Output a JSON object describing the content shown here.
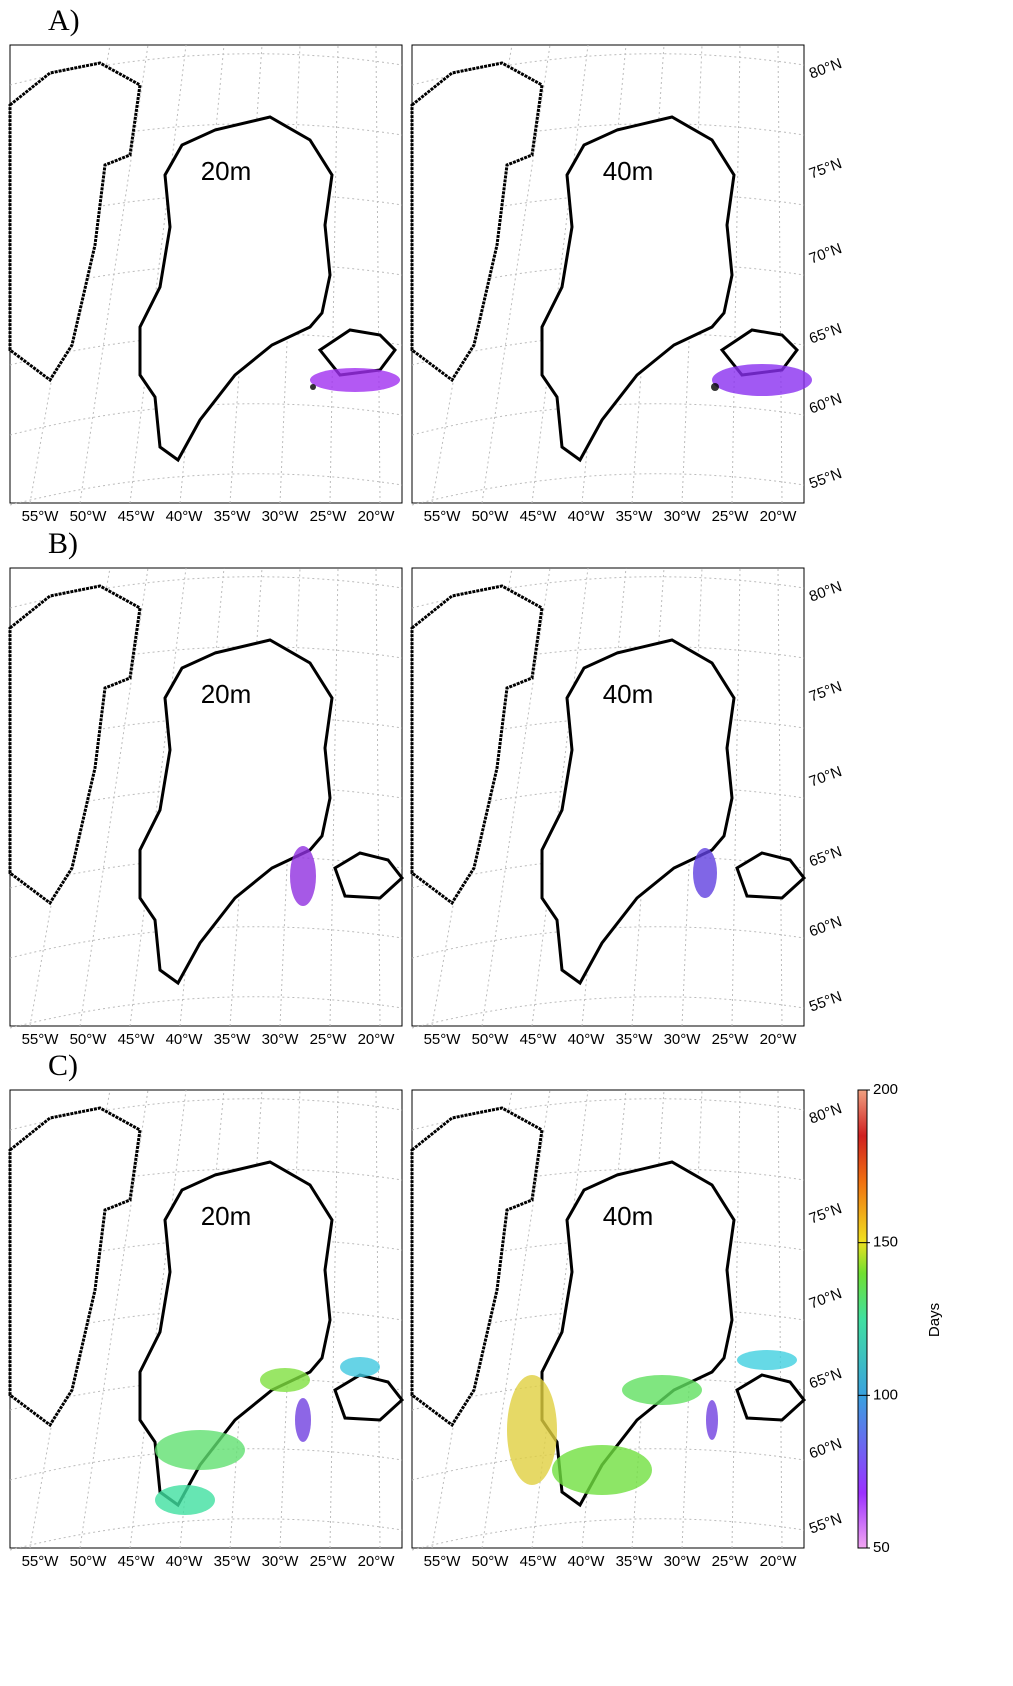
{
  "panels": [
    {
      "label": "A)",
      "maps": [
        {
          "depth": "20m"
        },
        {
          "depth": "40m"
        }
      ]
    },
    {
      "label": "B)",
      "maps": [
        {
          "depth": "20m"
        },
        {
          "depth": "40m"
        }
      ]
    },
    {
      "label": "C)",
      "maps": [
        {
          "depth": "20m"
        },
        {
          "depth": "40m"
        }
      ]
    }
  ],
  "lon_labels": [
    "55°W",
    "50°W",
    "45°W",
    "40°W",
    "35°W",
    "30°W",
    "25°W",
    "20°W"
  ],
  "lat_labels": [
    "80°N",
    "75°N",
    "70°N",
    "65°N",
    "60°N",
    "55°N"
  ],
  "colorbar": {
    "title": "Days",
    "range": [
      50,
      200
    ],
    "ticks": [
      50,
      100,
      150,
      200
    ]
  }
}
